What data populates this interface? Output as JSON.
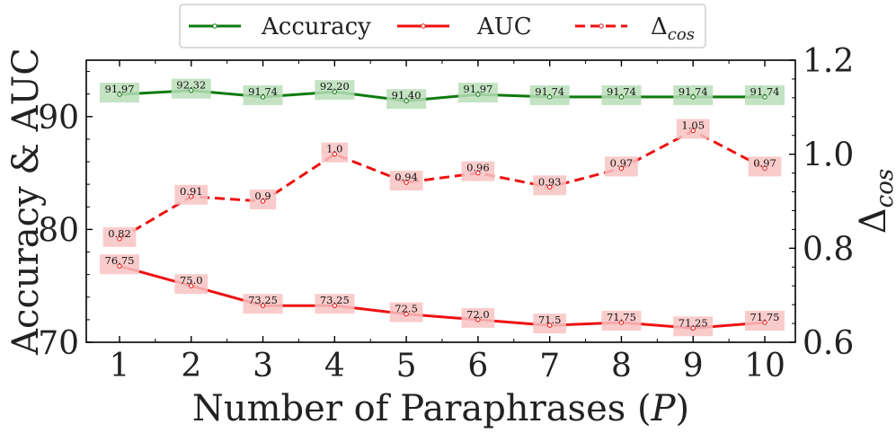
{
  "chart_data": {
    "type": "line",
    "title": "",
    "xlabel": "Number of Paraphrases (",
    "xlabel_var": "P",
    "xlabel_close": ")",
    "ylabel_left": "Accuracy & AUC",
    "ylabel_right_symbol": "Δ",
    "ylabel_right_sub": "cos",
    "x": [
      1,
      2,
      3,
      4,
      5,
      6,
      7,
      8,
      9,
      10
    ],
    "x_tick_labels": [
      "1",
      "2",
      "3",
      "4",
      "5",
      "6",
      "7",
      "8",
      "9",
      "10"
    ],
    "xlim": [
      0.55,
      10.45
    ],
    "ylim_left": [
      70,
      95
    ],
    "ylim_right": [
      0.6,
      1.2
    ],
    "y_left_ticks": [
      70,
      80,
      90
    ],
    "y_left_tick_labels": [
      "70",
      "80",
      "90"
    ],
    "y_right_ticks": [
      0.6,
      0.8,
      1.0,
      1.2
    ],
    "y_right_tick_labels": [
      "0.6",
      "0.8",
      "1.0",
      "1.2"
    ],
    "legend_position": "top-center",
    "series": [
      {
        "name": "Accuracy",
        "axis": "left",
        "color": "#0f7a0f",
        "label_bg": "#b8deb8",
        "dash": "solid",
        "values": [
          91.97,
          92.32,
          91.74,
          92.2,
          91.4,
          91.97,
          91.74,
          91.74,
          91.74,
          91.74
        ],
        "labels": [
          "91.97",
          "92.32",
          "91.74",
          "92.20",
          "91.40",
          "91.97",
          "91.74",
          "91.74",
          "91.74",
          "91.74"
        ]
      },
      {
        "name": "AUC",
        "axis": "left",
        "color": "#ee1111",
        "label_bg": "#f8c3c3",
        "dash": "solid",
        "values": [
          76.75,
          75.0,
          73.25,
          73.25,
          72.5,
          72.0,
          71.5,
          71.75,
          71.25,
          71.75
        ],
        "labels": [
          "76.75",
          "75.0",
          "73.25",
          "73.25",
          "72.5",
          "72.0",
          "71.5",
          "71.75",
          "71.25",
          "71.75"
        ]
      },
      {
        "name": "Δ",
        "name_sub": "cos",
        "axis": "right",
        "color": "#ee1111",
        "label_bg": "#f8c3c3",
        "dash": "dashed",
        "values": [
          0.82,
          0.91,
          0.9,
          1.0,
          0.94,
          0.96,
          0.93,
          0.97,
          1.05,
          0.97
        ],
        "labels": [
          "0.82",
          "0.91",
          "0.9",
          "1.0",
          "0.94",
          "0.96",
          "0.93",
          "0.97",
          "1.05",
          "0.97"
        ]
      }
    ]
  }
}
